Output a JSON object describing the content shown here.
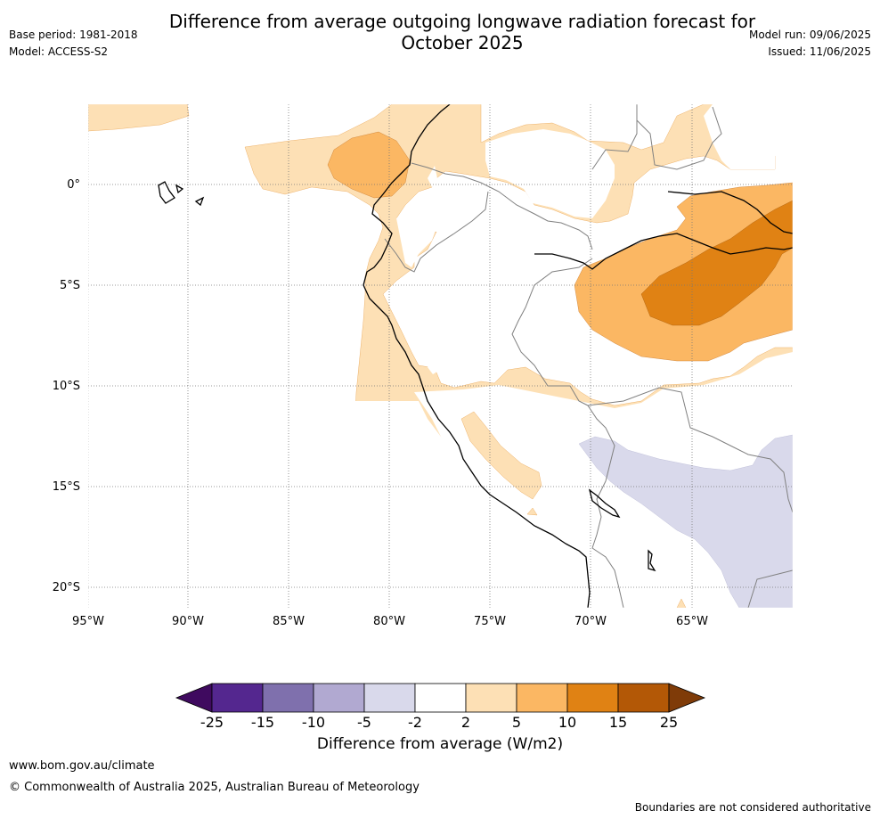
{
  "title_line1": "Difference from average outgoing longwave radiation forecast for",
  "title_line2": "October 2025",
  "meta": {
    "base_period": "Base period: 1981-2018",
    "model": "Model: ACCESS-S2",
    "model_run": "Model run: 09/06/2025",
    "issued": "Issued: 11/06/2025"
  },
  "map": {
    "lat_labels": [
      "0°",
      "5°S",
      "10°S",
      "15°S",
      "20°S"
    ],
    "lon_labels": [
      "95°W",
      "90°W",
      "85°W",
      "80°W",
      "75°W",
      "70°W",
      "65°W"
    ],
    "lat_values": [
      0,
      -5,
      -10,
      -15,
      -20
    ],
    "lon_values": [
      -95,
      -90,
      -85,
      -80,
      -75,
      -70,
      -65
    ],
    "extent": {
      "lon_min": -95,
      "lon_max": -60,
      "lat_min": -21,
      "lat_max": 4
    }
  },
  "colorbar": {
    "ticks": [
      "-25",
      "-15",
      "-10",
      "-5",
      "-2",
      "2",
      "5",
      "10",
      "15",
      "25"
    ],
    "colors": [
      "#3f0a5f",
      "#54278f",
      "#7f70ad",
      "#b1a9d1",
      "#d9d9eb",
      "#ffffff",
      "#fde0b5",
      "#fbb763",
      "#e08214",
      "#b35806",
      "#7f3b08"
    ],
    "label": "Difference from average (W/m2)"
  },
  "footer": {
    "url": "www.bom.gov.au/climate",
    "copyright": "© Commonwealth of Australia 2025, Australian Bureau of Meteorology",
    "note": "Boundaries are not considered authoritative"
  }
}
